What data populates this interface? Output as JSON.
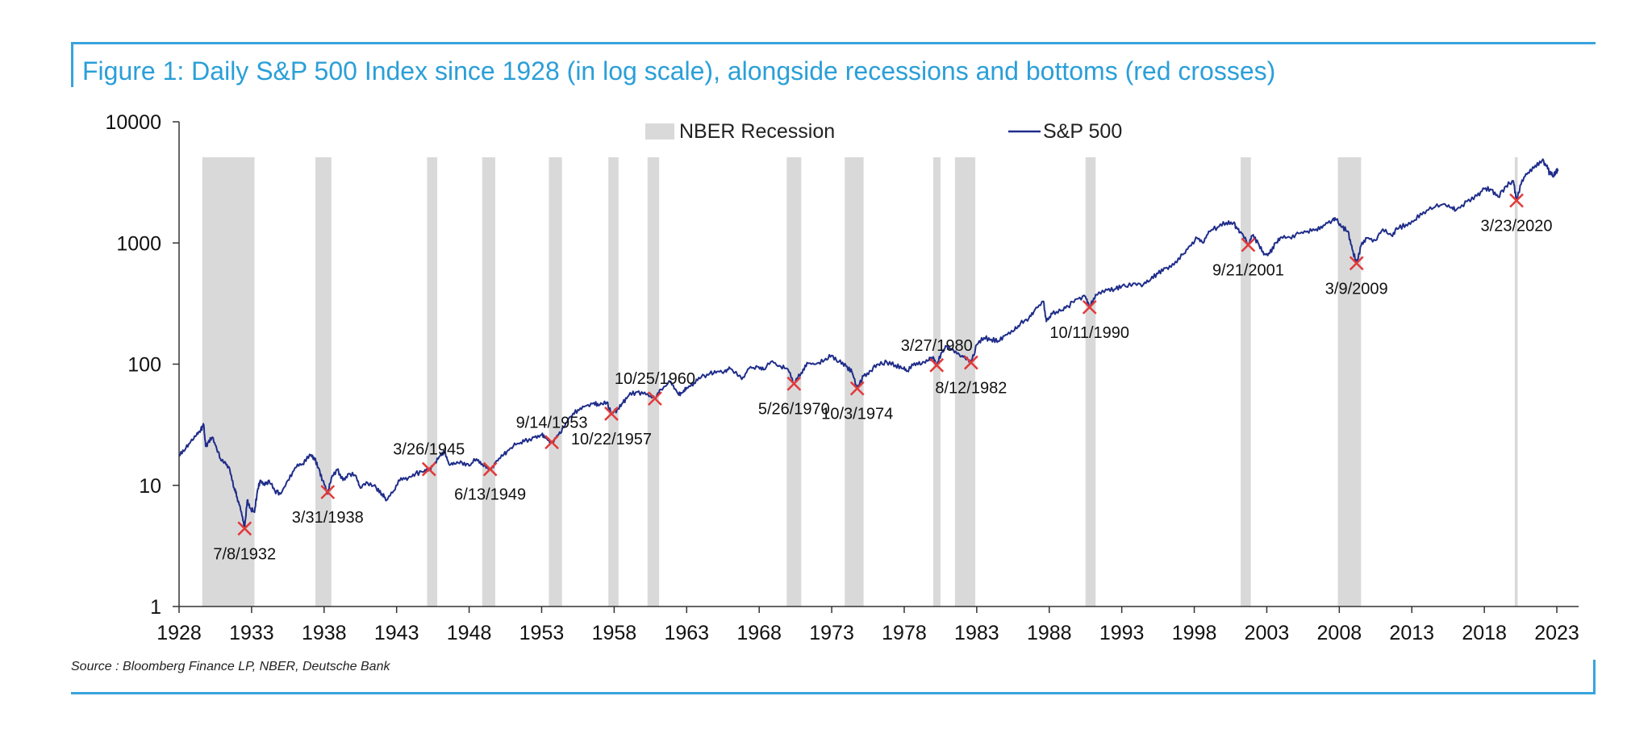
{
  "figure": {
    "title": "Figure 1: Daily S&P 500 Index since 1928 (in log scale), alongside recessions and bottoms (red crosses)",
    "source": "Source : Bloomberg Finance LP, NBER, Deutsche Bank"
  },
  "colors": {
    "frame": "#38a3dd",
    "title": "#2a9fd8",
    "line": "#1f2d8a",
    "recession": "#d9d9d9",
    "cross": "#e23a3a"
  },
  "chart_data": {
    "type": "line",
    "yscale": "log",
    "ylim": [
      1,
      10000
    ],
    "xlim": [
      1928,
      2024.5
    ],
    "yticks": [
      {
        "value": 1,
        "label": "1"
      },
      {
        "value": 10,
        "label": "10"
      },
      {
        "value": 100,
        "label": "100"
      },
      {
        "value": 1000,
        "label": "1000"
      },
      {
        "value": 10000,
        "label": "10000"
      }
    ],
    "xticks": [
      {
        "value": 1928,
        "label": "1928"
      },
      {
        "value": 1933,
        "label": "1933"
      },
      {
        "value": 1938,
        "label": "1938"
      },
      {
        "value": 1943,
        "label": "1943"
      },
      {
        "value": 1948,
        "label": "1948"
      },
      {
        "value": 1953,
        "label": "1953"
      },
      {
        "value": 1958,
        "label": "1958"
      },
      {
        "value": 1963,
        "label": "1963"
      },
      {
        "value": 1968,
        "label": "1968"
      },
      {
        "value": 1973,
        "label": "1973"
      },
      {
        "value": 1978,
        "label": "1978"
      },
      {
        "value": 1983,
        "label": "1983"
      },
      {
        "value": 1988,
        "label": "1988"
      },
      {
        "value": 1993,
        "label": "1993"
      },
      {
        "value": 1998,
        "label": "1998"
      },
      {
        "value": 2003,
        "label": "2003"
      },
      {
        "value": 2008,
        "label": "2008"
      },
      {
        "value": 2013,
        "label": "2013"
      },
      {
        "value": 2018,
        "label": "2018"
      },
      {
        "value": 2023,
        "label": "2023"
      }
    ],
    "legend": {
      "placement": "top-center",
      "recession_label": "NBER Recession",
      "series_label": "S&P 500"
    },
    "recessions": [
      [
        1929.6,
        1933.2
      ],
      [
        1937.4,
        1938.5
      ],
      [
        1945.1,
        1945.8
      ],
      [
        1948.9,
        1949.8
      ],
      [
        1953.5,
        1954.4
      ],
      [
        1957.6,
        1958.3
      ],
      [
        1960.3,
        1961.1
      ],
      [
        1969.9,
        1970.9
      ],
      [
        1973.9,
        1975.2
      ],
      [
        1980.0,
        1980.5
      ],
      [
        1981.5,
        1982.9
      ],
      [
        1990.5,
        1991.2
      ],
      [
        2001.2,
        2001.9
      ],
      [
        2007.9,
        2009.5
      ],
      [
        2020.1,
        2020.3
      ]
    ],
    "series": [
      {
        "name": "S&P 500",
        "points": [
          [
            1928.0,
            17.5
          ],
          [
            1928.4,
            19.5
          ],
          [
            1928.8,
            23.0
          ],
          [
            1929.2,
            26.0
          ],
          [
            1929.5,
            29.0
          ],
          [
            1929.7,
            31.5
          ],
          [
            1929.83,
            21.0
          ],
          [
            1930.0,
            22.5
          ],
          [
            1930.3,
            25.0
          ],
          [
            1930.6,
            20.0
          ],
          [
            1930.9,
            16.0
          ],
          [
            1931.2,
            15.5
          ],
          [
            1931.5,
            13.5
          ],
          [
            1931.8,
            9.5
          ],
          [
            1932.0,
            8.0
          ],
          [
            1932.3,
            6.0
          ],
          [
            1932.52,
            4.4
          ],
          [
            1932.7,
            7.5
          ],
          [
            1932.9,
            6.5
          ],
          [
            1933.2,
            6.0
          ],
          [
            1933.4,
            9.0
          ],
          [
            1933.6,
            11.0
          ],
          [
            1933.9,
            10.0
          ],
          [
            1934.2,
            11.0
          ],
          [
            1934.6,
            9.0
          ],
          [
            1935.0,
            8.5
          ],
          [
            1935.5,
            11.0
          ],
          [
            1936.0,
            14.0
          ],
          [
            1936.5,
            15.0
          ],
          [
            1937.0,
            18.0
          ],
          [
            1937.3,
            17.0
          ],
          [
            1937.6,
            14.0
          ],
          [
            1937.9,
            11.0
          ],
          [
            1938.25,
            8.5
          ],
          [
            1938.5,
            11.5
          ],
          [
            1938.9,
            13.5
          ],
          [
            1939.3,
            11.0
          ],
          [
            1939.7,
            12.5
          ],
          [
            1940.2,
            12.0
          ],
          [
            1940.5,
            9.5
          ],
          [
            1941.0,
            10.5
          ],
          [
            1941.6,
            9.5
          ],
          [
            1942.0,
            8.5
          ],
          [
            1942.3,
            7.5
          ],
          [
            1942.8,
            9.0
          ],
          [
            1943.3,
            11.5
          ],
          [
            1943.8,
            11.5
          ],
          [
            1944.3,
            12.5
          ],
          [
            1944.9,
            13.0
          ],
          [
            1945.23,
            13.5
          ],
          [
            1945.6,
            15.0
          ],
          [
            1946.0,
            17.5
          ],
          [
            1946.3,
            19.0
          ],
          [
            1946.6,
            15.0
          ],
          [
            1947.0,
            15.0
          ],
          [
            1947.5,
            15.5
          ],
          [
            1948.0,
            14.5
          ],
          [
            1948.5,
            16.5
          ],
          [
            1948.9,
            15.0
          ],
          [
            1949.45,
            13.5
          ],
          [
            1949.9,
            16.0
          ],
          [
            1950.4,
            18.0
          ],
          [
            1950.8,
            20.0
          ],
          [
            1951.3,
            22.0
          ],
          [
            1951.8,
            23.0
          ],
          [
            1952.5,
            25.0
          ],
          [
            1953.0,
            26.0
          ],
          [
            1953.3,
            24.5
          ],
          [
            1953.7,
            22.5
          ],
          [
            1954.1,
            26.0
          ],
          [
            1954.5,
            30.0
          ],
          [
            1955.0,
            37.0
          ],
          [
            1955.5,
            42.0
          ],
          [
            1956.0,
            45.0
          ],
          [
            1956.6,
            48.0
          ],
          [
            1957.0,
            46.0
          ],
          [
            1957.5,
            48.5
          ],
          [
            1957.81,
            39.0
          ],
          [
            1958.2,
            42.0
          ],
          [
            1958.6,
            48.0
          ],
          [
            1959.0,
            55.0
          ],
          [
            1959.6,
            59.0
          ],
          [
            1960.2,
            56.0
          ],
          [
            1960.81,
            52.0
          ],
          [
            1961.2,
            62.0
          ],
          [
            1961.9,
            72.0
          ],
          [
            1962.4,
            57.0
          ],
          [
            1962.7,
            58.0
          ],
          [
            1963.0,
            64.0
          ],
          [
            1963.5,
            70.0
          ],
          [
            1964.0,
            78.0
          ],
          [
            1964.6,
            84.0
          ],
          [
            1965.1,
            87.0
          ],
          [
            1965.6,
            87.0
          ],
          [
            1966.0,
            92.0
          ],
          [
            1966.8,
            75.0
          ],
          [
            1967.3,
            92.0
          ],
          [
            1967.9,
            95.0
          ],
          [
            1968.3,
            90.0
          ],
          [
            1968.9,
            106.0
          ],
          [
            1969.5,
            95.0
          ],
          [
            1970.0,
            90.0
          ],
          [
            1970.4,
            69.0
          ],
          [
            1970.9,
            85.0
          ],
          [
            1971.3,
            103.0
          ],
          [
            1971.9,
            100.0
          ],
          [
            1972.5,
            108.0
          ],
          [
            1973.0,
            118.0
          ],
          [
            1973.5,
            105.0
          ],
          [
            1974.0,
            96.0
          ],
          [
            1974.4,
            86.0
          ],
          [
            1974.76,
            63.0
          ],
          [
            1975.2,
            80.0
          ],
          [
            1975.7,
            88.0
          ],
          [
            1976.2,
            100.0
          ],
          [
            1976.8,
            104.0
          ],
          [
            1977.4,
            98.0
          ],
          [
            1977.9,
            92.0
          ],
          [
            1978.2,
            88.0
          ],
          [
            1978.7,
            102.0
          ],
          [
            1979.2,
            100.0
          ],
          [
            1979.7,
            108.0
          ],
          [
            1980.0,
            115.0
          ],
          [
            1980.24,
            98.0
          ],
          [
            1980.6,
            125.0
          ],
          [
            1980.9,
            140.0
          ],
          [
            1981.3,
            132.0
          ],
          [
            1981.8,
            120.0
          ],
          [
            1982.2,
            112.0
          ],
          [
            1982.61,
            103.0
          ],
          [
            1983.0,
            145.0
          ],
          [
            1983.5,
            165.0
          ],
          [
            1984.0,
            160.0
          ],
          [
            1984.5,
            155.0
          ],
          [
            1985.0,
            175.0
          ],
          [
            1985.6,
            190.0
          ],
          [
            1986.0,
            215.0
          ],
          [
            1986.6,
            240.0
          ],
          [
            1987.0,
            280.0
          ],
          [
            1987.6,
            330.0
          ],
          [
            1987.8,
            225.0
          ],
          [
            1988.2,
            260.0
          ],
          [
            1988.8,
            275.0
          ],
          [
            1989.3,
            300.0
          ],
          [
            1989.9,
            345.0
          ],
          [
            1990.5,
            360.0
          ],
          [
            1990.78,
            295.0
          ],
          [
            1991.2,
            375.0
          ],
          [
            1991.9,
            415.0
          ],
          [
            1992.5,
            415.0
          ],
          [
            1993.0,
            440.0
          ],
          [
            1993.8,
            465.0
          ],
          [
            1994.5,
            455.0
          ],
          [
            1995.0,
            500.0
          ],
          [
            1995.5,
            560.0
          ],
          [
            1996.0,
            620.0
          ],
          [
            1996.6,
            660.0
          ],
          [
            1997.2,
            800.0
          ],
          [
            1997.7,
            950.0
          ],
          [
            1998.2,
            1100.0
          ],
          [
            1998.6,
            1000.0
          ],
          [
            1999.0,
            1250.0
          ],
          [
            1999.6,
            1350.0
          ],
          [
            2000.2,
            1470.0
          ],
          [
            2000.7,
            1460.0
          ],
          [
            2001.0,
            1300.0
          ],
          [
            2001.3,
            1200.0
          ],
          [
            2001.72,
            965.0
          ],
          [
            2002.0,
            1150.0
          ],
          [
            2002.4,
            1000.0
          ],
          [
            2002.8,
            800.0
          ],
          [
            2003.2,
            820.0
          ],
          [
            2003.6,
            1000.0
          ],
          [
            2004.0,
            1120.0
          ],
          [
            2004.6,
            1110.0
          ],
          [
            2005.2,
            1200.0
          ],
          [
            2005.8,
            1250.0
          ],
          [
            2006.4,
            1300.0
          ],
          [
            2006.9,
            1400.0
          ],
          [
            2007.5,
            1530.0
          ],
          [
            2007.8,
            1560.0
          ],
          [
            2008.2,
            1350.0
          ],
          [
            2008.6,
            1250.0
          ],
          [
            2008.9,
            880.0
          ],
          [
            2009.19,
            680.0
          ],
          [
            2009.5,
            950.0
          ],
          [
            2009.9,
            1100.0
          ],
          [
            2010.5,
            1050.0
          ],
          [
            2011.0,
            1300.0
          ],
          [
            2011.6,
            1150.0
          ],
          [
            2012.0,
            1300.0
          ],
          [
            2012.6,
            1420.0
          ],
          [
            2013.2,
            1550.0
          ],
          [
            2013.8,
            1800.0
          ],
          [
            2014.5,
            1950.0
          ],
          [
            2015.2,
            2100.0
          ],
          [
            2015.7,
            1950.0
          ],
          [
            2016.1,
            1900.0
          ],
          [
            2016.8,
            2200.0
          ],
          [
            2017.5,
            2450.0
          ],
          [
            2018.0,
            2800.0
          ],
          [
            2018.5,
            2750.0
          ],
          [
            2018.95,
            2400.0
          ],
          [
            2019.5,
            2950.0
          ],
          [
            2020.0,
            3250.0
          ],
          [
            2020.22,
            2240.0
          ],
          [
            2020.6,
            3300.0
          ],
          [
            2021.0,
            3800.0
          ],
          [
            2021.5,
            4350.0
          ],
          [
            2021.98,
            4790.0
          ],
          [
            2022.3,
            4300.0
          ],
          [
            2022.5,
            3750.0
          ],
          [
            2022.8,
            3600.0
          ],
          [
            2022.95,
            3900.0
          ],
          [
            2023.1,
            4050.0
          ]
        ]
      }
    ],
    "bottoms": [
      {
        "x": 1932.52,
        "y": 4.4,
        "label": "7/8/1932",
        "pos": "below"
      },
      {
        "x": 1938.25,
        "y": 8.8,
        "label": "3/31/1938",
        "pos": "below"
      },
      {
        "x": 1945.23,
        "y": 13.6,
        "label": "3/26/1945",
        "pos": "above"
      },
      {
        "x": 1949.45,
        "y": 13.6,
        "label": "6/13/1949",
        "pos": "below"
      },
      {
        "x": 1953.7,
        "y": 22.7,
        "label": "9/14/1953",
        "pos": "above"
      },
      {
        "x": 1957.81,
        "y": 39.0,
        "label": "10/22/1957",
        "pos": "below"
      },
      {
        "x": 1960.81,
        "y": 52.0,
        "label": "10/25/1960",
        "pos": "above"
      },
      {
        "x": 1970.4,
        "y": 69.0,
        "label": "5/26/1970",
        "pos": "below"
      },
      {
        "x": 1974.76,
        "y": 63.0,
        "label": "10/3/1974",
        "pos": "below"
      },
      {
        "x": 1980.24,
        "y": 98.0,
        "label": "3/27/1980",
        "pos": "above"
      },
      {
        "x": 1982.61,
        "y": 103.0,
        "label": "8/12/1982",
        "pos": "below"
      },
      {
        "x": 1990.78,
        "y": 295.0,
        "label": "10/11/1990",
        "pos": "below"
      },
      {
        "x": 2001.72,
        "y": 965.0,
        "label": "9/21/2001",
        "pos": "below"
      },
      {
        "x": 2009.19,
        "y": 680.0,
        "label": "3/9/2009",
        "pos": "below"
      },
      {
        "x": 2020.22,
        "y": 2240.0,
        "label": "3/23/2020",
        "pos": "below"
      }
    ]
  }
}
